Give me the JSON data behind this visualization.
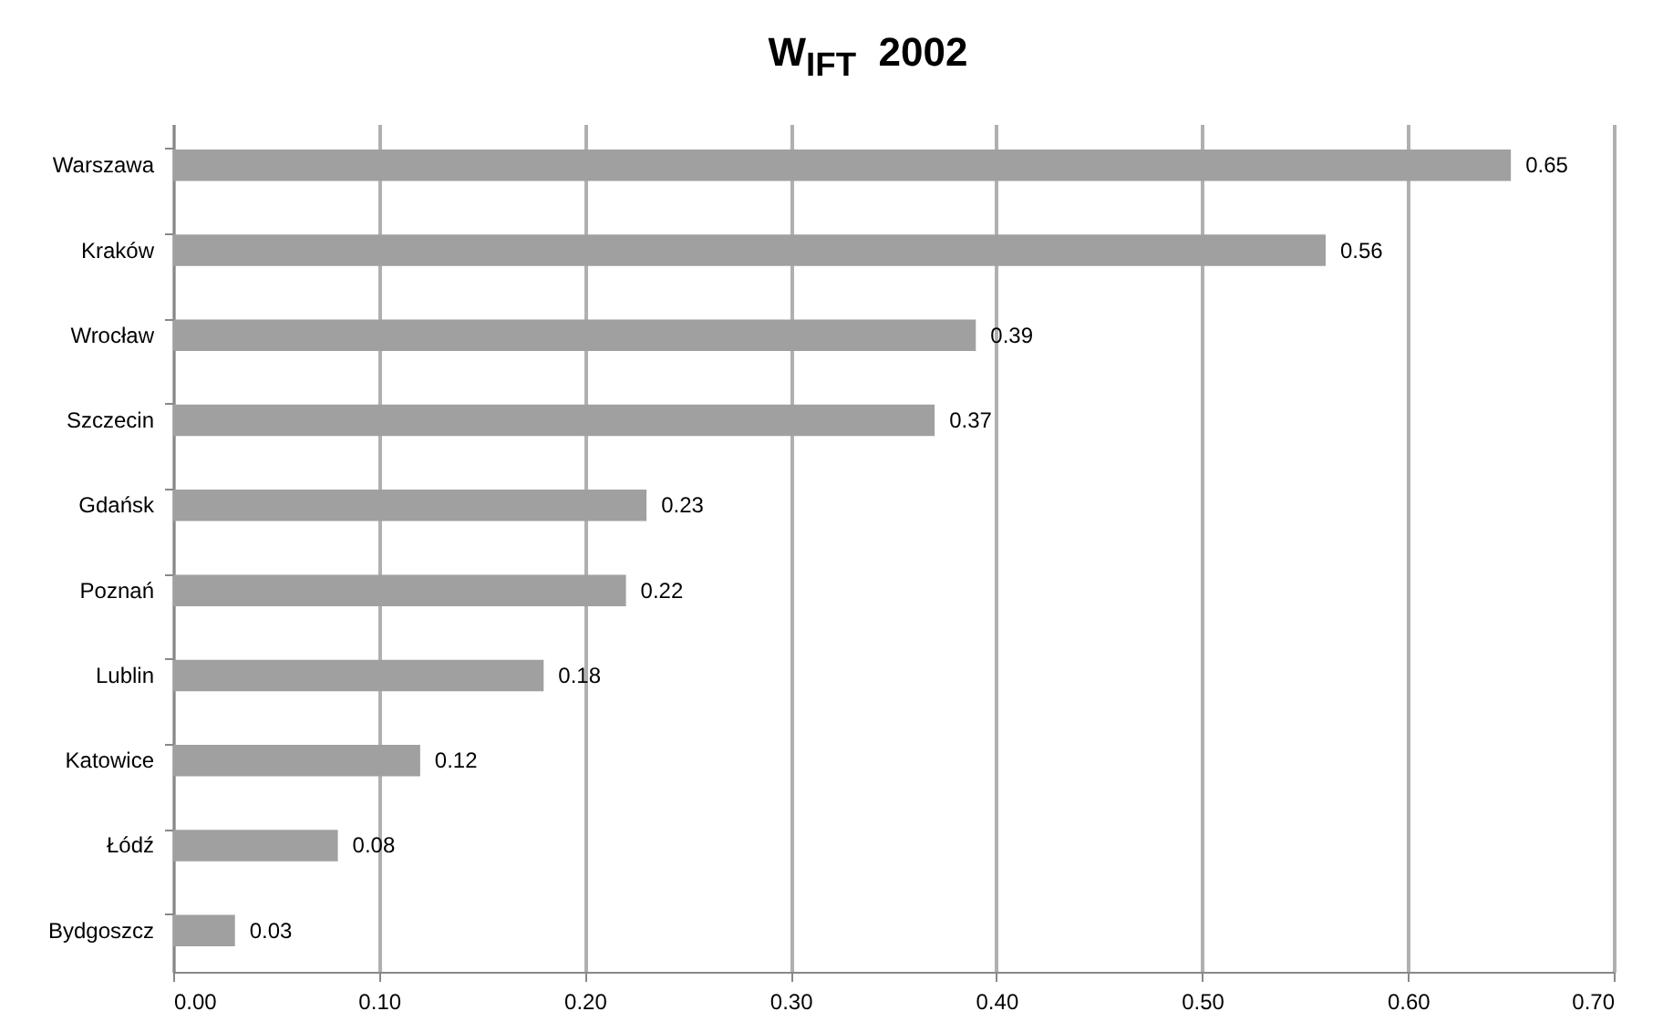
{
  "chart_data": {
    "type": "bar",
    "orientation": "horizontal",
    "title": "W$_{IFT}$  2002",
    "categories": [
      "Warszawa",
      "Kraków",
      "Wrocław",
      "Szczecin",
      "Gdańsk",
      "Poznań",
      "Lublin",
      "Katowice",
      "Łódź",
      "Bydgoszcz"
    ],
    "values": [
      0.65,
      0.56,
      0.39,
      0.37,
      0.23,
      0.22,
      0.18,
      0.12,
      0.08,
      0.03
    ],
    "color": "#a0a0a0",
    "data_labels": true,
    "grid": "x",
    "xlim": [
      0,
      0.7
    ],
    "xticks": [
      {
        "value": 0,
        "label": "0.00"
      },
      {
        "value": 0.1,
        "label": "0.10"
      },
      {
        "value": 0.2,
        "label": "0.20"
      },
      {
        "value": 0.3,
        "label": "0.30"
      },
      {
        "value": 0.4,
        "label": "0.40"
      },
      {
        "value": 0.5,
        "label": "0.50"
      },
      {
        "value": 0.6,
        "label": "0.60"
      },
      {
        "value": 0.7,
        "label": "0.70"
      }
    ]
  }
}
